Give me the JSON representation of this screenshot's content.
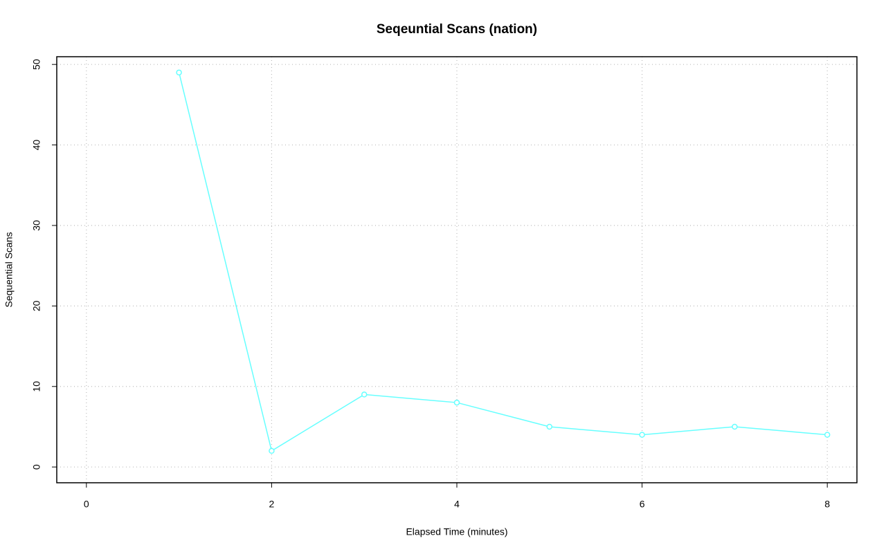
{
  "chart_data": {
    "type": "line",
    "title": "Seqeuntial Scans (nation)",
    "x_label": "Elapsed Time (minutes)",
    "y_label": "Sequential Scans",
    "x": [
      1,
      2,
      3,
      4,
      5,
      6,
      7,
      8
    ],
    "series": [
      {
        "name": "nation",
        "color": "#66ffff",
        "values": [
          49,
          2,
          9,
          8,
          5,
          4,
          5,
          4
        ]
      }
    ],
    "xlim": [
      -0.32,
      8.32
    ],
    "xticks": [
      0,
      2,
      4,
      6,
      8
    ],
    "ylim": [
      -1.96,
      50.96
    ],
    "yticks": [
      0,
      10,
      20,
      30,
      40,
      50
    ],
    "grid": true
  }
}
